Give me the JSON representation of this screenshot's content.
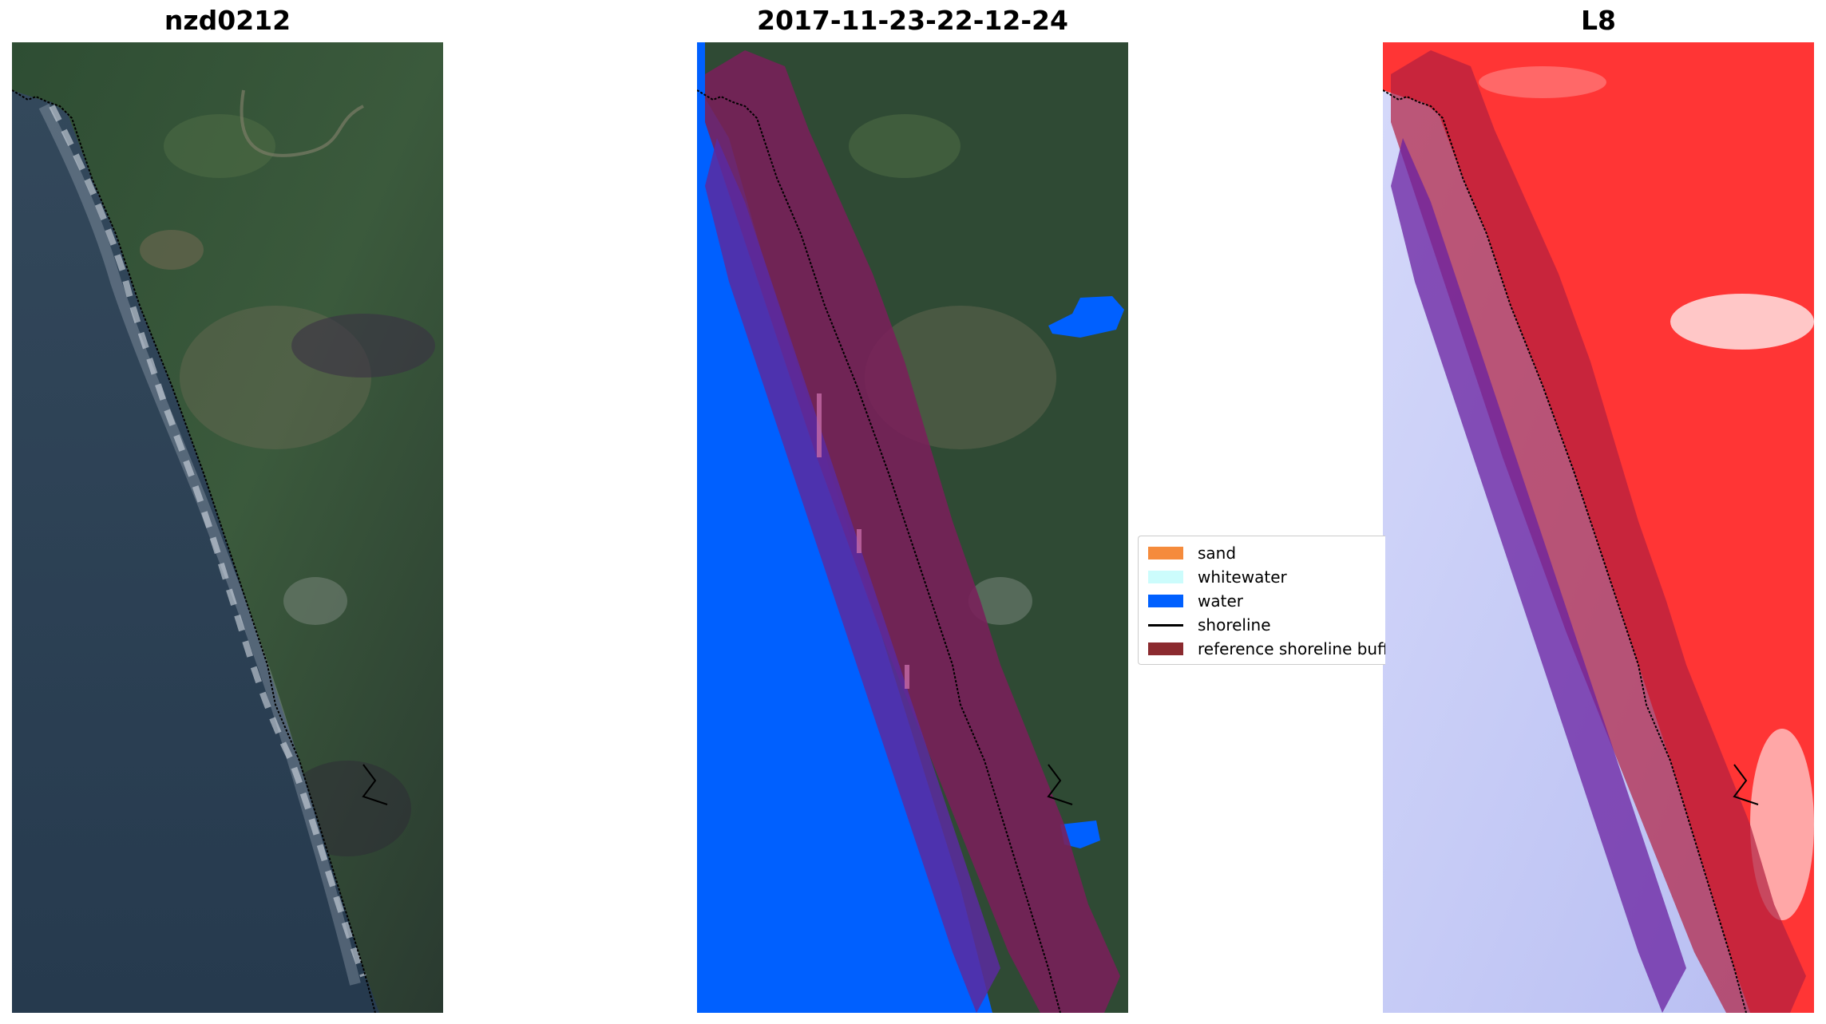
{
  "panels": [
    {
      "title": "nzd0212"
    },
    {
      "title": "2017-11-23-22-12-24"
    },
    {
      "title": "L8"
    }
  ],
  "legend": {
    "items": [
      {
        "label": "sand",
        "color": "#f58b3c"
      },
      {
        "label": "whitewater",
        "color": "#ccfcfc"
      },
      {
        "label": "water",
        "color": "#0060ff"
      },
      {
        "label": "shoreline",
        "color": "#000000"
      },
      {
        "label": "reference shoreline buffer",
        "color": "#8b2a2f"
      }
    ]
  },
  "colors": {
    "land": "#2f4a34",
    "ocean": "#2d4358",
    "water_class": "#0060ff",
    "buffer": "#7a1f5a",
    "index_high": "#ff3030",
    "index_low": "#c8ccf6"
  }
}
